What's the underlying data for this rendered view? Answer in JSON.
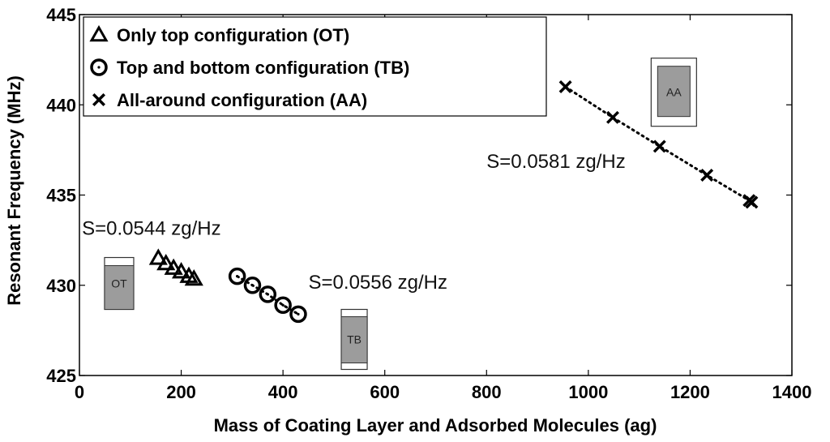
{
  "chart_data": {
    "type": "scatter",
    "xlabel": "Mass of Coating Layer and Adsorbed Molecules (ag)",
    "ylabel": "Resonant Frequency (MHz)",
    "xlim": [
      0,
      1400
    ],
    "ylim": [
      425,
      445
    ],
    "xticks": [
      "0",
      "200",
      "400",
      "600",
      "800",
      "1000",
      "1200",
      "1400"
    ],
    "yticks": [
      "425",
      "430",
      "435",
      "440",
      "445"
    ],
    "legend_position": "top-left",
    "grid": false,
    "series": [
      {
        "name": "Only top configuration (OT)",
        "marker": "triangle",
        "line": "none",
        "x": [
          155,
          170,
          185,
          200,
          215,
          225
        ],
        "y": [
          431.5,
          431.2,
          430.95,
          430.75,
          430.5,
          430.35
        ]
      },
      {
        "name": "Top and bottom configuration (TB)",
        "marker": "circle",
        "line": "dotted",
        "x": [
          310,
          340,
          370,
          400,
          430
        ],
        "y": [
          430.5,
          430.0,
          429.5,
          428.9,
          428.4
        ]
      },
      {
        "name": "All-around configuration (AA)",
        "marker": "x",
        "line": "dotted",
        "x": [
          955,
          1048,
          1140,
          1233,
          1316,
          1321
        ],
        "y": [
          441.0,
          439.3,
          437.7,
          436.1,
          434.7,
          434.6
        ]
      }
    ],
    "annotations": [
      {
        "text": "S=0.0544 zg/Hz",
        "x": 5,
        "y": 432.8
      },
      {
        "text": "S=0.0556 zg/Hz",
        "x": 450,
        "y": 429.8
      },
      {
        "text": "S=0.0581 zg/Hz",
        "x": 800,
        "y": 436.5
      }
    ],
    "insets": [
      {
        "label": "OT",
        "x": 78,
        "y": 430.1
      },
      {
        "label": "TB",
        "x": 540,
        "y": 427.0
      },
      {
        "label": "AA",
        "x": 1168,
        "y": 440.7
      }
    ]
  }
}
